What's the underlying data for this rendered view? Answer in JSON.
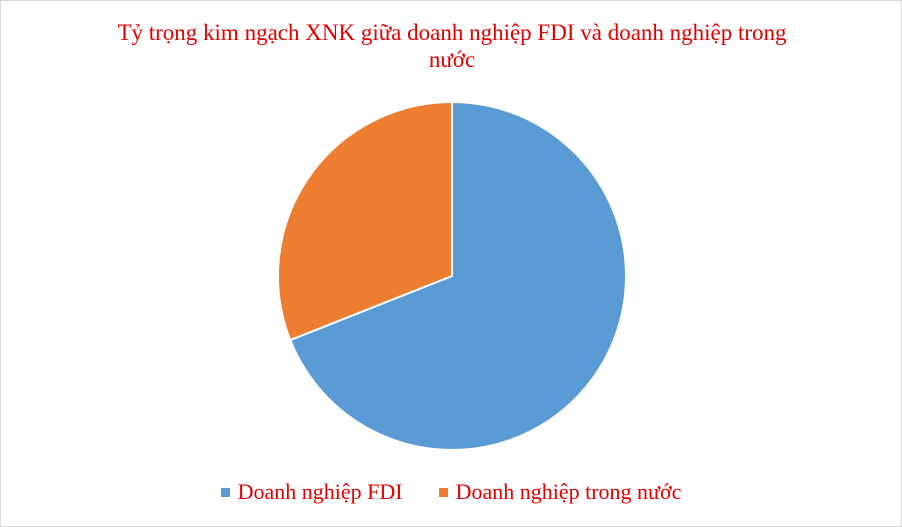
{
  "chart_data": {
    "type": "pie",
    "title": "Tỷ trọng kim ngạch XNK giữa doanh nghiệp FDI và doanh nghiệp trong nước",
    "categories": [
      "Doanh nghiệp FDI",
      "Doanh nghiệp trong nước"
    ],
    "values": [
      69,
      31
    ],
    "colors": [
      "#5b9bd5",
      "#ed7d31"
    ],
    "legend": "bottom"
  }
}
